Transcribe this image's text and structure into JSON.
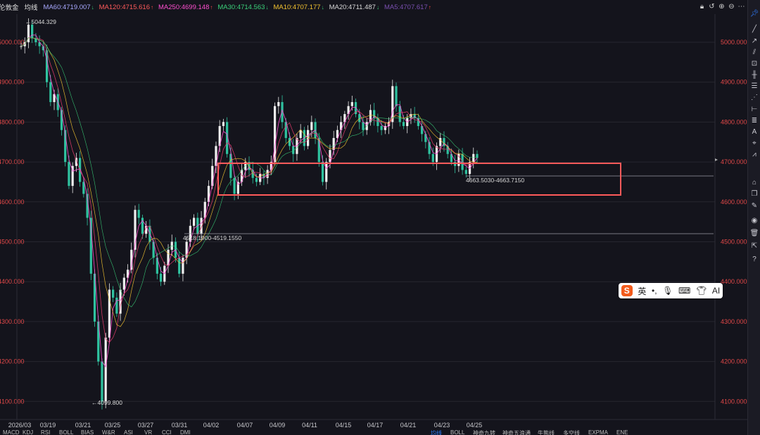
{
  "topbar": {
    "symbol": "伦敦金",
    "mode": "均线",
    "indicators": [
      {
        "label": "MA60:4719.007",
        "color": "#a9a9ff",
        "dir": "↓"
      },
      {
        "label": "MA120:4715.616",
        "color": "#ff5a5a",
        "dir": "↑"
      },
      {
        "label": "MA250:4699.148",
        "color": "#ff4fd0",
        "dir": "↑"
      },
      {
        "label": "MA30:4714.563",
        "color": "#3ad17a",
        "dir": "↓"
      },
      {
        "label": "MA10:4707.177",
        "color": "#f2c230",
        "dir": "↓"
      },
      {
        "label": "MA20:4711.487",
        "color": "#d8d8d8",
        "dir": "↓"
      },
      {
        "label": "MA5:4707.617",
        "color": "#7a4fb0",
        "dir": "↑"
      }
    ],
    "controls": [
      "lock-icon",
      "undo-icon",
      "add-icon",
      "minus-icon",
      "more-icon"
    ]
  },
  "axis_left": [
    "5000.000",
    "4900.000",
    "4800.000",
    "4700.000",
    "4600.000",
    "4500.000",
    "4400.000",
    "4300.000",
    "4200.000",
    "4100.000"
  ],
  "axis_right": [
    "5000.000",
    "4900.000",
    "4800.000",
    "4700.000",
    "4600.000",
    "4500.000",
    "4400.000",
    "4300.000",
    "4200.000",
    "4100.000"
  ],
  "dates": [
    "2026/03",
    "03/19",
    "03/21",
    "03/25",
    "03/27",
    "03/31",
    "04/02",
    "04/07",
    "04/09",
    "04/11",
    "04/15",
    "04/17",
    "04/21",
    "04/23",
    "04/25"
  ],
  "annotations": {
    "high": "5044.329",
    "low": "4099.800",
    "line1_label": "4518.1900-4519.1550",
    "line2_label": "4663.5030-4663.7150"
  },
  "ime": {
    "lang": "英",
    "punct": "•,",
    "mic": "mic-icon",
    "kb": "keyboard-icon",
    "skin": "skin-icon",
    "ai": "AI"
  },
  "bottom_tabs_left": [
    "MACD",
    "KDJ",
    "RSI",
    "BOLL",
    "BIAS",
    "W&R",
    "ASI",
    "VR",
    "CCI",
    "DMI"
  ],
  "bottom_tabs_right": [
    "均线",
    "BOLL",
    "神奇九转",
    "神奇五浪通",
    "牛熊线",
    "多空线",
    "EXPMA",
    "ENE"
  ],
  "chart_data": {
    "type": "candlestick",
    "ylim": [
      4100,
      5044
    ],
    "series": [
      {
        "name": "伦敦金",
        "values": [
          4990,
          5000,
          5044,
          5010,
          5000,
          4990,
          4980,
          4900,
          4850,
          4870,
          4830,
          4780,
          4700,
          4640,
          4690,
          4710,
          4650,
          4620,
          4560,
          4420,
          4300,
          4200,
          4099.8,
          4260,
          4380,
          4360,
          4320,
          4380,
          4410,
          4430,
          4480,
          4580,
          4560,
          4520,
          4540,
          4500,
          4460,
          4420,
          4400,
          4440,
          4480,
          4500,
          4460,
          4420,
          4460,
          4500,
          4540,
          4560,
          4520,
          4560,
          4600,
          4640,
          4690,
          4740,
          4790,
          4800,
          4720,
          4660,
          4620,
          4650,
          4680,
          4700,
          4680,
          4660,
          4650,
          4670,
          4660,
          4680,
          4700,
          4840,
          4850,
          4800,
          4760,
          4740,
          4720,
          4760,
          4780,
          4740,
          4780,
          4800,
          4760,
          4700,
          4650,
          4700,
          4730,
          4760,
          4780,
          4800,
          4820,
          4840,
          4850,
          4820,
          4800,
          4780,
          4800,
          4830,
          4810,
          4790,
          4780,
          4790,
          4800,
          4890,
          4840,
          4800,
          4790,
          4810,
          4820,
          4810,
          4790,
          4770,
          4750,
          4720,
          4700,
          4740,
          4760,
          4740,
          4720,
          4700,
          4690,
          4720,
          4680,
          4670,
          4700,
          4720,
          4710
        ]
      }
    ]
  }
}
